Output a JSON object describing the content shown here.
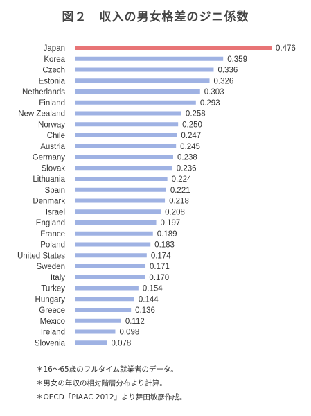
{
  "chart_data": {
    "type": "bar",
    "orientation": "horizontal",
    "title": "図２　収入の男女格差のジニ係数",
    "categories": [
      "Japan",
      "Korea",
      "Czech",
      "Estonia",
      "Netherlands",
      "Finland",
      "New Zealand",
      "Norway",
      "Chile",
      "Austria",
      "Germany",
      "Slovak",
      "Lithuania",
      "Spain",
      "Denmark",
      "Israel",
      "England",
      "France",
      "Poland",
      "United States",
      "Sweden",
      "Italy",
      "Turkey",
      "Hungary",
      "Greece",
      "Mexico",
      "Ireland",
      "Slovenia"
    ],
    "values": [
      0.476,
      0.359,
      0.336,
      0.326,
      0.303,
      0.293,
      0.258,
      0.25,
      0.247,
      0.245,
      0.238,
      0.236,
      0.224,
      0.221,
      0.218,
      0.208,
      0.197,
      0.189,
      0.183,
      0.174,
      0.171,
      0.17,
      0.154,
      0.144,
      0.136,
      0.112,
      0.098,
      0.078
    ],
    "value_labels": [
      "0.476",
      "0.359",
      "0.336",
      "0.326",
      "0.303",
      "0.293",
      "0.258",
      "0.250",
      "0.247",
      "0.245",
      "0.238",
      "0.236",
      "0.224",
      "0.221",
      "0.218",
      "0.208",
      "0.197",
      "0.189",
      "0.183",
      "0.174",
      "0.171",
      "0.170",
      "0.154",
      "0.144",
      "0.136",
      "0.112",
      "0.098",
      "0.078"
    ],
    "highlight_category": "Japan",
    "xlim": [
      0,
      0.5
    ],
    "grid": false,
    "colors": {
      "default_bar": "#9fb2e3",
      "highlight_bar": "#e87476"
    }
  },
  "notes": [
    "＊16～65歳のフルタイム就業者のデータ。",
    "＊男女の年収の相対階層分布より計算。",
    "＊OECD「PIAAC 2012」より舞田敏彦作成。"
  ]
}
